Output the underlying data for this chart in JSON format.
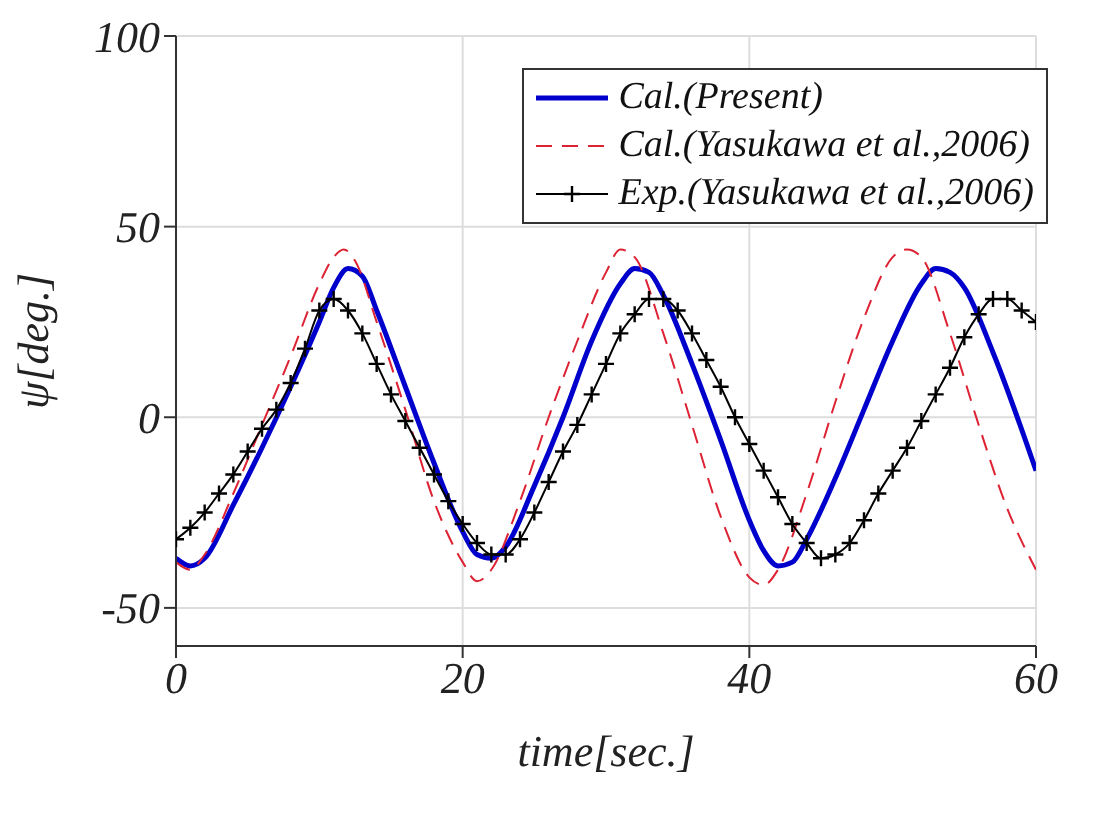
{
  "chart_data": {
    "type": "line",
    "xlabel": "time[sec.]",
    "ylabel": "ψ[deg.]",
    "xlim": [
      0,
      60
    ],
    "ylim": [
      -60,
      100
    ],
    "xticks": [
      0,
      20,
      40,
      60
    ],
    "yticks": [
      -50,
      0,
      50,
      100
    ],
    "grid": true,
    "legend": "top right",
    "series": [
      {
        "name": "Cal.(Present)",
        "color": "#0000cc",
        "line_style": "solid",
        "marker": "none",
        "x": [
          0,
          1,
          2,
          4,
          6,
          8,
          10,
          11,
          12,
          13,
          14,
          16,
          18,
          20,
          21,
          22,
          23,
          25,
          27,
          29,
          31,
          32,
          33,
          34,
          36,
          38,
          40,
          41,
          42,
          43,
          44,
          46,
          48,
          50,
          52,
          53,
          54,
          55,
          57,
          60
        ],
        "values": [
          -37,
          -39,
          -37,
          -23,
          -8,
          8,
          25,
          34,
          39,
          37,
          28,
          8,
          -12,
          -30,
          -36,
          -37,
          -34,
          -18,
          0,
          20,
          35,
          39,
          38,
          32,
          14,
          -6,
          -27,
          -35,
          -39,
          -38,
          -32,
          -16,
          2,
          20,
          35,
          39,
          38,
          34,
          17,
          -14
        ]
      },
      {
        "name": "Cal.(Yasukawa et al.,2006)",
        "color": "#dd2233",
        "line_style": "dashed",
        "marker": "none",
        "x": [
          0,
          1,
          2,
          4,
          6,
          8,
          10,
          11,
          11.7,
          12.5,
          14,
          16,
          18,
          20,
          21,
          22,
          24,
          26,
          28,
          30,
          31,
          32,
          34,
          36,
          38,
          40,
          41,
          42,
          44,
          46,
          48,
          50,
          51,
          52,
          54,
          56,
          58,
          60
        ],
        "values": [
          -38,
          -40,
          -36,
          -20,
          -2,
          16,
          35,
          42,
          44,
          41,
          25,
          2,
          -22,
          -38,
          -43,
          -40,
          -22,
          0,
          20,
          38,
          44,
          42,
          22,
          -2,
          -26,
          -42,
          -44,
          -40,
          -20,
          4,
          26,
          42,
          44,
          42,
          22,
          -2,
          -24,
          -40
        ]
      },
      {
        "name": "Exp.(Yasukawa et al.,2006)",
        "color": "#000000",
        "line_style": "solid",
        "marker": "cross",
        "x": [
          0,
          1,
          2,
          3,
          4,
          5,
          6,
          7,
          8,
          9,
          10,
          11,
          12,
          13,
          14,
          15,
          16,
          17,
          18,
          19,
          20,
          21,
          22,
          23,
          24,
          25,
          26,
          27,
          28,
          29,
          30,
          31,
          32,
          33,
          34,
          35,
          36,
          37,
          38,
          39,
          40,
          41,
          42,
          43,
          44,
          45,
          46,
          47,
          48,
          49,
          50,
          51,
          52,
          53,
          54,
          55,
          56,
          57,
          58,
          59,
          60
        ],
        "values": [
          -32,
          -29,
          -25,
          -20,
          -15,
          -9,
          -3,
          2,
          9,
          18,
          28,
          31,
          28,
          22,
          14,
          6,
          -1,
          -8,
          -15,
          -22,
          -28,
          -33,
          -36,
          -36,
          -32,
          -25,
          -17,
          -9,
          -2,
          6,
          14,
          22,
          27,
          31,
          31,
          28,
          22,
          15,
          8,
          0,
          -7,
          -14,
          -21,
          -28,
          -33,
          -37,
          -36,
          -33,
          -27,
          -20,
          -14,
          -8,
          -1,
          6,
          13,
          21,
          27,
          31,
          31,
          28,
          25
        ]
      }
    ]
  }
}
